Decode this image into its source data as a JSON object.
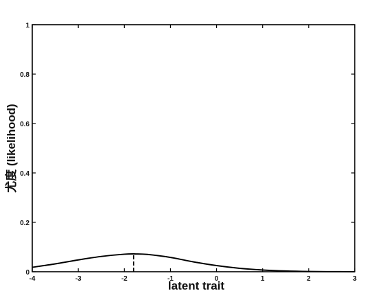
{
  "chart_data": {
    "type": "line",
    "title": "",
    "xlabel": "latent trait",
    "ylabel": "尤度 (likelihood)",
    "xlim": [
      -4,
      3
    ],
    "ylim": [
      0,
      1
    ],
    "xticks": [
      -4,
      -3,
      -2,
      -1,
      0,
      1,
      2,
      3
    ],
    "yticks": [
      0,
      0.2,
      0.4,
      0.6,
      0.8,
      1
    ],
    "xtick_labels": [
      "-4",
      "-3",
      "-2",
      "-1",
      "0",
      "1",
      "2",
      "3"
    ],
    "ytick_labels": [
      "0",
      "0.2",
      "0.4",
      "0.6",
      "0.8",
      "1"
    ],
    "grid": false,
    "legend": "none",
    "series": [
      {
        "color": "#000000",
        "x": [
          -4,
          -3.5,
          -3,
          -2.5,
          -2,
          -1.75,
          -1.5,
          -1,
          -0.5,
          0,
          0.5,
          1,
          1.5,
          2,
          2.5,
          3
        ],
        "y": [
          0.018,
          0.032,
          0.048,
          0.062,
          0.071,
          0.072,
          0.07,
          0.058,
          0.04,
          0.025,
          0.014,
          0.007,
          0.003,
          0.001,
          0.0004,
          0.0001
        ]
      }
    ],
    "annotations": [
      {
        "type": "dashed-vertical-line",
        "x": -1.8,
        "y": [
          0,
          0.068
        ]
      }
    ]
  }
}
